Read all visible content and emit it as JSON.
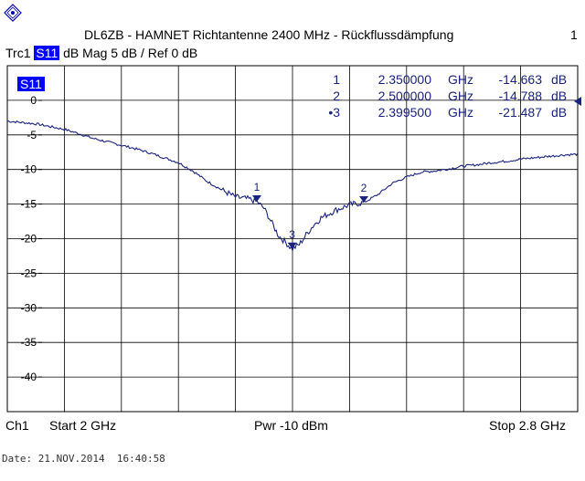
{
  "header": {
    "title": "DL6ZB - HAMNET Richtantenne 2400 MHz - Rückflussdämpfung",
    "channel_indicator": "1",
    "trace_name": "Trc1",
    "trace_param": "S11",
    "trace_format": "dB Mag",
    "trace_scale": "5 dB /",
    "trace_ref": "Ref 0 dB"
  },
  "footer": {
    "channel": "Ch1",
    "start": "Start  2 GHz",
    "power": "Pwr  -10 dBm",
    "stop": "Stop  2.8 GHz",
    "date": "Date: 21.NOV.2014  16:40:58"
  },
  "colors": {
    "trace": "#1a237e",
    "grid": "#000000",
    "label_bg": "#0000ff",
    "label_fg": "#ffffff"
  },
  "chart_data": {
    "type": "line",
    "title": "DL6ZB - HAMNET Richtantenne 2400 MHz - Rückflussdämpfung",
    "xlabel": "",
    "ylabel": "",
    "xlim": [
      2.0,
      2.8
    ],
    "ylim": [
      -45,
      5
    ],
    "grid": true,
    "y_ticks": [
      "0",
      "-5",
      "-10",
      "-15",
      "-20",
      "-25",
      "-30",
      "-35",
      "-40"
    ],
    "y_tick_values": [
      0,
      -5,
      -10,
      -15,
      -20,
      -25,
      -30,
      -35,
      -40
    ],
    "reference_level": 0,
    "series": [
      {
        "name": "S11",
        "x": [
          2.0,
          2.02,
          2.04,
          2.06,
          2.08,
          2.1,
          2.12,
          2.14,
          2.16,
          2.18,
          2.2,
          2.22,
          2.24,
          2.26,
          2.28,
          2.3,
          2.32,
          2.34,
          2.35,
          2.36,
          2.37,
          2.38,
          2.39,
          2.3995,
          2.41,
          2.42,
          2.43,
          2.44,
          2.46,
          2.48,
          2.5,
          2.52,
          2.54,
          2.56,
          2.58,
          2.6,
          2.62,
          2.64,
          2.66,
          2.68,
          2.7,
          2.72,
          2.74,
          2.76,
          2.78,
          2.8
        ],
        "y": [
          -3.0,
          -3.2,
          -3.4,
          -3.8,
          -4.2,
          -4.8,
          -5.5,
          -6.0,
          -6.5,
          -7.0,
          -7.6,
          -8.3,
          -9.0,
          -10.2,
          -11.7,
          -12.9,
          -14.0,
          -14.3,
          -14.66,
          -15.6,
          -17.5,
          -19.5,
          -20.5,
          -21.49,
          -20.8,
          -19.3,
          -18.0,
          -17.0,
          -15.9,
          -15.1,
          -14.79,
          -13.6,
          -12.0,
          -11.1,
          -10.4,
          -10.2,
          -9.9,
          -9.5,
          -9.3,
          -9.0,
          -8.8,
          -8.5,
          -8.3,
          -8.1,
          -7.9,
          -7.8
        ]
      }
    ],
    "markers": [
      {
        "label": "1",
        "freq_ghz": 2.35,
        "freq_text": "2.350000",
        "unit": "GHz",
        "value_text": "-14.663",
        "value_unit": "dB",
        "value": -14.663,
        "prefix": ""
      },
      {
        "label": "2",
        "freq_ghz": 2.5,
        "freq_text": "2.500000",
        "unit": "GHz",
        "value_text": "-14.788",
        "value_unit": "dB",
        "value": -14.788,
        "prefix": ""
      },
      {
        "label": "3",
        "freq_ghz": 2.3995,
        "freq_text": "2.399500",
        "unit": "GHz",
        "value_text": "-21.487",
        "value_unit": "dB",
        "value": -21.487,
        "prefix": "•"
      }
    ]
  }
}
